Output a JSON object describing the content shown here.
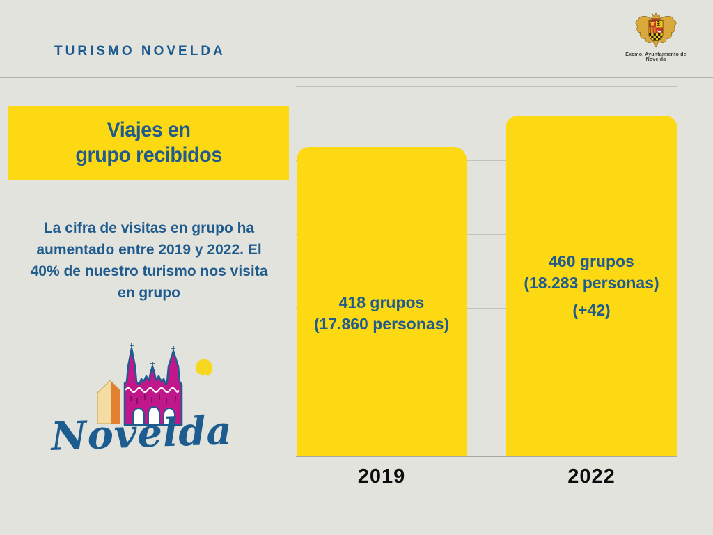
{
  "page": {
    "background": "#E3E3DE"
  },
  "header": {
    "brand": "TURISMO NOVELDA",
    "crest_caption": "Excmo. Ayuntamiento de Novelda"
  },
  "left": {
    "title_line1": "Viajes en",
    "title_line2": "grupo recibidos",
    "description": "La cifra de visitas en grupo ha aumentado entre 2019 y 2022. El 40% de nuestro turismo nos visita en grupo",
    "logo_wordmark": "Novelda"
  },
  "chart_data": {
    "type": "bar",
    "title": "Viajes en grupo recibidos",
    "categories": [
      "2019",
      "2022"
    ],
    "values": [
      418,
      460
    ],
    "persons": [
      17860,
      18283
    ],
    "delta_groups": "+42",
    "bar_labels": [
      [
        "418 grupos",
        "(17.860 personas)"
      ],
      [
        "460 grupos",
        "(18.283 personas)",
        "(+42)"
      ]
    ],
    "xlabel": "",
    "ylabel": "",
    "ylim": [
      0,
      500
    ],
    "gridline_step": 100,
    "grid": true,
    "legend": false,
    "bar_color": "#FDD913",
    "label_color": "#1F5B8D"
  },
  "colors": {
    "background": "#E3E3DE",
    "accent_yellow": "#FDD913",
    "text_blue": "#1F5B8D",
    "axis_label_black": "#0D0D0D",
    "gridline_gray": "#C2C2BE",
    "divider_gray": "#B2B2AE",
    "logo_magenta": "#C0178B",
    "logo_orange": "#E08030",
    "logo_beige": "#F4DCA2",
    "logo_sun_yellow": "#F6D71F",
    "crest_gold": "#D9A93C"
  }
}
